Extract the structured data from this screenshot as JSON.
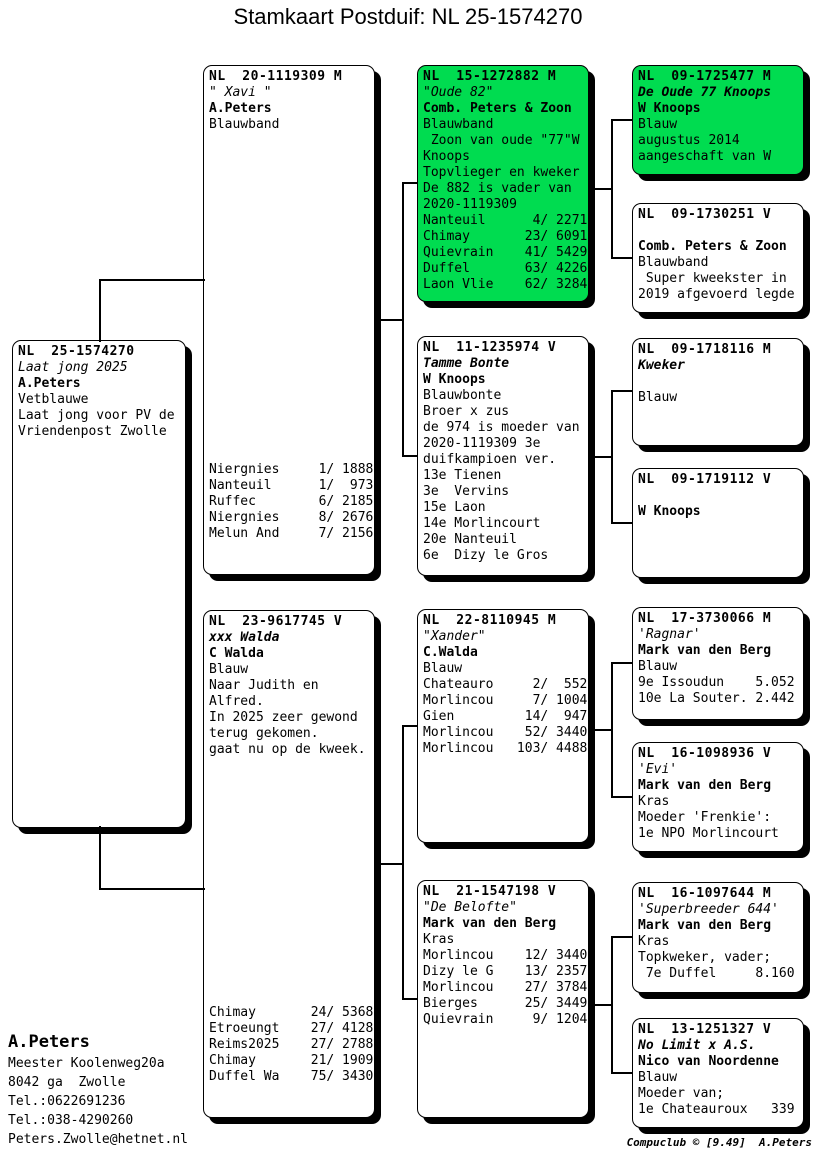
{
  "title": "Stamkaart Postduif: NL  25-1574270",
  "colors": {
    "highlight_green": "#00DC50",
    "box_bg": "#FFFFFF",
    "line_black": "#000000"
  },
  "boxes": {
    "subject": {
      "highlight": false,
      "lines": [
        [
          "h",
          "NL  25-1574270"
        ],
        [
          "ni",
          "Laat jong 2025"
        ],
        [
          "b",
          "A.Peters"
        ],
        [
          "p",
          "Vetblauwe"
        ],
        [
          "p",
          "Laat jong voor PV de"
        ],
        [
          "p",
          "Vriendenpost Zwolle"
        ]
      ]
    },
    "sire": {
      "highlight": false,
      "lines": [
        [
          "h",
          "NL  20-1119309 M"
        ],
        [
          "ni",
          "\" Xavi \""
        ],
        [
          "b",
          "A.Peters"
        ],
        [
          "p",
          "Blauwband"
        ],
        [
          "gap",
          ""
        ],
        [
          "p",
          "Niergnies     1/ 1888"
        ],
        [
          "p",
          "Nanteuil      1/  973"
        ],
        [
          "p",
          "Ruffec        6/ 2185"
        ],
        [
          "p",
          "Niergnies     8/ 2676"
        ],
        [
          "p",
          "Melun And     7/ 2156"
        ]
      ]
    },
    "dam": {
      "highlight": false,
      "lines": [
        [
          "h",
          "NL  23-9617745 V"
        ],
        [
          "nbi",
          "xxx Walda"
        ],
        [
          "b",
          "C Walda"
        ],
        [
          "p",
          "Blauw"
        ],
        [
          "p",
          "Naar Judith en"
        ],
        [
          "p",
          "Alfred."
        ],
        [
          "p",
          "In 2025 zeer gewond"
        ],
        [
          "p",
          "terug gekomen."
        ],
        [
          "p",
          "gaat nu op de kweek."
        ],
        [
          "gap",
          ""
        ],
        [
          "p",
          "Chimay       24/ 5368"
        ],
        [
          "p",
          "Etroeungt    27/ 4128"
        ],
        [
          "p",
          "Reims2025    27/ 2788"
        ],
        [
          "p",
          "Chimay       21/ 1909"
        ],
        [
          "p",
          "Duffel Wa    75/ 3430"
        ]
      ]
    },
    "sire_sire": {
      "highlight": true,
      "lines": [
        [
          "h",
          "NL  15-1272882 M"
        ],
        [
          "ni",
          "\"Oude 82\""
        ],
        [
          "b",
          "Comb. Peters & Zoon"
        ],
        [
          "p",
          "Blauwband"
        ],
        [
          "p",
          " Zoon van oude \"77\"W"
        ],
        [
          "p",
          "Knoops"
        ],
        [
          "p",
          "Topvlieger en kweker"
        ],
        [
          "p",
          "De 882 is vader van"
        ],
        [
          "p",
          "2020-1119309"
        ],
        [
          "p",
          "Nanteuil      4/ 2271"
        ],
        [
          "p",
          "Chimay       23/ 6091"
        ],
        [
          "p",
          "Quievrain    41/ 5429"
        ],
        [
          "p",
          "Duffel       63/ 4226"
        ],
        [
          "p",
          "Laon Vlie    62/ 3284"
        ]
      ]
    },
    "sire_dam": {
      "highlight": false,
      "lines": [
        [
          "h",
          "NL  11-1235974 V"
        ],
        [
          "nbi",
          "Tamme Bonte"
        ],
        [
          "b",
          "W Knoops"
        ],
        [
          "p",
          "Blauwbonte"
        ],
        [
          "p",
          "Broer x zus"
        ],
        [
          "p",
          "de 974 is moeder van"
        ],
        [
          "p",
          "2020-1119309 3e"
        ],
        [
          "p",
          "duifkampioen ver."
        ],
        [
          "p",
          "13e Tienen"
        ],
        [
          "p",
          "3e  Vervins"
        ],
        [
          "p",
          "15e Laon"
        ],
        [
          "p",
          "14e Morlincourt"
        ],
        [
          "p",
          "20e Nanteuil"
        ],
        [
          "p",
          "6e  Dizy le Gros"
        ]
      ]
    },
    "dam_sire": {
      "highlight": false,
      "lines": [
        [
          "h",
          "NL  22-8110945 M"
        ],
        [
          "ni",
          "\"Xander\""
        ],
        [
          "b",
          "C.Walda"
        ],
        [
          "p",
          "Blauw"
        ],
        [
          "p",
          "Chateauro     2/  552"
        ],
        [
          "p",
          "Morlincou     7/ 1004"
        ],
        [
          "p",
          "Gien         14/  947"
        ],
        [
          "p",
          "Morlincou    52/ 3440"
        ],
        [
          "p",
          "Morlincou   103/ 4488"
        ]
      ]
    },
    "dam_dam": {
      "highlight": false,
      "lines": [
        [
          "h",
          "NL  21-1547198 V"
        ],
        [
          "ni",
          "\"De Belofte\""
        ],
        [
          "b",
          "Mark van den Berg"
        ],
        [
          "p",
          "Kras"
        ],
        [
          "p",
          "Morlincou    12/ 3440"
        ],
        [
          "p",
          "Dizy le G    13/ 2357"
        ],
        [
          "p",
          "Morlincou    27/ 3784"
        ],
        [
          "p",
          "Bierges      25/ 3449"
        ],
        [
          "p",
          "Quievrain     9/ 1204"
        ]
      ]
    },
    "sire_sire_sire": {
      "highlight": true,
      "lines": [
        [
          "h",
          "NL  09-1725477 M"
        ],
        [
          "nbi",
          "De Oude 77 Knoops"
        ],
        [
          "b",
          "W Knoops"
        ],
        [
          "p",
          "Blauw"
        ],
        [
          "p",
          "augustus 2014"
        ],
        [
          "p",
          "aangeschaft van W"
        ]
      ]
    },
    "sire_sire_dam": {
      "highlight": false,
      "lines": [
        [
          "h",
          "NL  09-1730251 V"
        ],
        [
          "p",
          ""
        ],
        [
          "b",
          "Comb. Peters & Zoon"
        ],
        [
          "p",
          "Blauwband"
        ],
        [
          "p",
          " Super kweekster in"
        ],
        [
          "p",
          "2019 afgevoerd legde"
        ]
      ]
    },
    "sire_dam_sire": {
      "highlight": false,
      "lines": [
        [
          "h",
          "NL  09-1718116 M"
        ],
        [
          "nbi",
          "Kweker"
        ],
        [
          "p",
          ""
        ],
        [
          "p",
          "Blauw"
        ]
      ]
    },
    "sire_dam_dam": {
      "highlight": false,
      "lines": [
        [
          "h",
          "NL  09-1719112 V"
        ],
        [
          "p",
          ""
        ],
        [
          "b",
          "W Knoops"
        ]
      ]
    },
    "dam_sire_sire": {
      "highlight": false,
      "lines": [
        [
          "h",
          "NL  17-3730066 M"
        ],
        [
          "ni",
          "'Ragnar'"
        ],
        [
          "b",
          "Mark van den Berg"
        ],
        [
          "p",
          "Blauw"
        ],
        [
          "p",
          "9e Issoudun    5.052"
        ],
        [
          "p",
          "10e La Souter. 2.442"
        ]
      ]
    },
    "dam_sire_dam": {
      "highlight": false,
      "lines": [
        [
          "h",
          "NL  16-1098936 V"
        ],
        [
          "ni",
          "'Evi'"
        ],
        [
          "b",
          "Mark van den Berg"
        ],
        [
          "p",
          "Kras"
        ],
        [
          "p",
          "Moeder 'Frenkie':"
        ],
        [
          "p",
          "1e NPO Morlincourt"
        ]
      ]
    },
    "dam_dam_sire": {
      "highlight": false,
      "lines": [
        [
          "h",
          "NL  16-1097644 M"
        ],
        [
          "ni",
          "'Superbreeder 644'"
        ],
        [
          "b",
          "Mark van den Berg"
        ],
        [
          "p",
          "Kras"
        ],
        [
          "p",
          "Topkweker, vader;"
        ],
        [
          "p",
          " 7e Duffel     8.160"
        ]
      ]
    },
    "dam_dam_dam": {
      "highlight": false,
      "lines": [
        [
          "h",
          "NL  13-1251327 V"
        ],
        [
          "nbi",
          "No Limit x A.S."
        ],
        [
          "b",
          "Nico van Noordenne"
        ],
        [
          "p",
          "Blauw"
        ],
        [
          "p",
          "Moeder van;"
        ],
        [
          "p",
          "1e Chateauroux   339"
        ]
      ]
    }
  },
  "owner_block": {
    "name": "A.Peters",
    "address_lines": [
      "Meester Koolenweg20a",
      "8042 ga  Zwolle",
      "Tel.:0622691236",
      "Tel.:038-4290260",
      "Peters.Zwolle@hetnet.nl"
    ]
  },
  "footer": {
    "credit": "Compuclub © [9.49]  A.Peters"
  }
}
